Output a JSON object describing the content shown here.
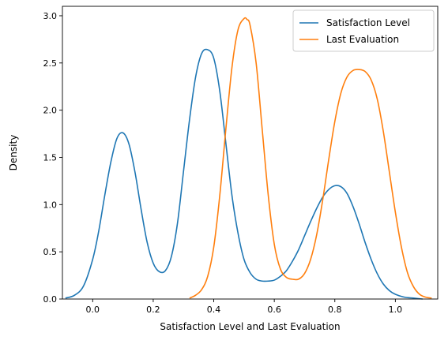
{
  "chart_data": {
    "type": "line",
    "title": "",
    "xlabel": "Satisfaction Level and Last Evaluation",
    "ylabel": "Density",
    "xlim": [
      -0.1,
      1.14
    ],
    "ylim": [
      0,
      3.1
    ],
    "xticks": [
      0.0,
      0.2,
      0.4,
      0.6,
      0.8,
      1.0
    ],
    "xtick_labels": [
      "0.0",
      "0.2",
      "0.4",
      "0.6",
      "0.8",
      "1.0"
    ],
    "yticks": [
      0.0,
      0.5,
      1.0,
      1.5,
      2.0,
      2.5,
      3.0
    ],
    "ytick_labels": [
      "0.0",
      "0.5",
      "1.0",
      "1.5",
      "2.0",
      "2.5",
      "3.0"
    ],
    "grid": false,
    "legend": "top-right",
    "series": [
      {
        "name": "Satisfaction Level",
        "color": "#1f77b4",
        "x": [
          -0.09,
          -0.06,
          -0.03,
          0.0,
          0.02,
          0.04,
          0.06,
          0.08,
          0.1,
          0.12,
          0.14,
          0.16,
          0.18,
          0.2,
          0.22,
          0.24,
          0.26,
          0.28,
          0.3,
          0.32,
          0.34,
          0.36,
          0.38,
          0.4,
          0.42,
          0.44,
          0.46,
          0.48,
          0.5,
          0.52,
          0.54,
          0.56,
          0.58,
          0.6,
          0.62,
          0.64,
          0.66,
          0.68,
          0.7,
          0.72,
          0.74,
          0.76,
          0.78,
          0.8,
          0.82,
          0.84,
          0.86,
          0.88,
          0.9,
          0.92,
          0.94,
          0.96,
          0.98,
          1.0,
          1.03,
          1.06,
          1.09
        ],
        "y": [
          0.01,
          0.04,
          0.14,
          0.42,
          0.72,
          1.1,
          1.45,
          1.7,
          1.76,
          1.64,
          1.34,
          0.95,
          0.6,
          0.38,
          0.29,
          0.3,
          0.45,
          0.8,
          1.35,
          1.9,
          2.35,
          2.6,
          2.64,
          2.55,
          2.2,
          1.65,
          1.1,
          0.7,
          0.42,
          0.28,
          0.21,
          0.19,
          0.19,
          0.2,
          0.24,
          0.3,
          0.4,
          0.52,
          0.67,
          0.82,
          0.96,
          1.08,
          1.16,
          1.2,
          1.19,
          1.12,
          0.98,
          0.8,
          0.6,
          0.42,
          0.27,
          0.16,
          0.09,
          0.05,
          0.02,
          0.01,
          0.0
        ]
      },
      {
        "name": "Last Evaluation",
        "color": "#ff7f0e",
        "x": [
          0.32,
          0.34,
          0.36,
          0.38,
          0.4,
          0.42,
          0.44,
          0.46,
          0.48,
          0.5,
          0.51,
          0.52,
          0.54,
          0.56,
          0.58,
          0.6,
          0.62,
          0.64,
          0.66,
          0.68,
          0.7,
          0.72,
          0.74,
          0.76,
          0.78,
          0.8,
          0.82,
          0.84,
          0.86,
          0.88,
          0.9,
          0.92,
          0.94,
          0.96,
          0.98,
          1.0,
          1.02,
          1.04,
          1.06,
          1.08,
          1.1,
          1.12
        ],
        "y": [
          0.01,
          0.04,
          0.1,
          0.24,
          0.55,
          1.1,
          1.8,
          2.45,
          2.85,
          2.97,
          2.96,
          2.9,
          2.5,
          1.8,
          1.1,
          0.58,
          0.32,
          0.23,
          0.21,
          0.21,
          0.27,
          0.42,
          0.68,
          1.05,
          1.48,
          1.88,
          2.18,
          2.35,
          2.42,
          2.43,
          2.41,
          2.32,
          2.12,
          1.78,
          1.35,
          0.92,
          0.55,
          0.28,
          0.13,
          0.05,
          0.02,
          0.01
        ]
      }
    ]
  }
}
